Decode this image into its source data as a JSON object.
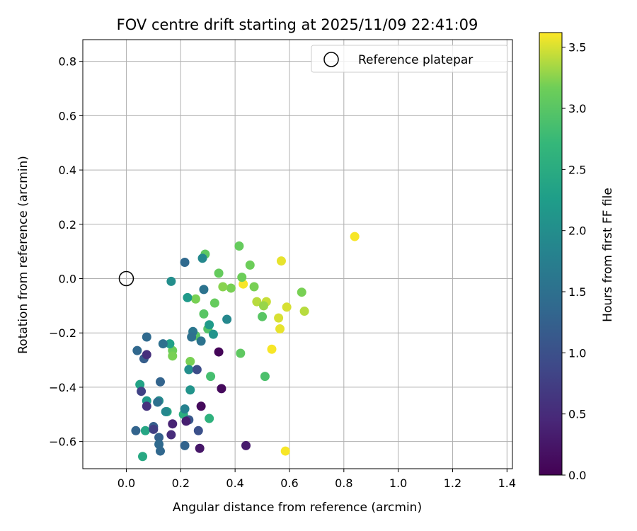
{
  "chart_data": {
    "type": "scatter",
    "title": "FOV centre drift starting at 2025/11/09 22:41:09",
    "xlabel": "Angular distance from reference (arcmin)",
    "ylabel": "Rotation from reference (arcmin)",
    "xlim": [
      -0.16,
      1.42
    ],
    "ylim": [
      -0.7,
      0.88
    ],
    "x_ticks": [
      "0.0",
      "0.2",
      "0.4",
      "0.6",
      "0.8",
      "1.0",
      "1.2",
      "1.4"
    ],
    "y_ticks": [
      "0.8",
      "0.6",
      "0.4",
      "0.2",
      "0.0",
      "−0.2",
      "−0.4",
      "−0.6"
    ],
    "grid": true,
    "legend": {
      "position": "top-right",
      "entries": [
        "Reference platepar"
      ]
    },
    "colorbar": {
      "label": "Hours from first FF file",
      "colormap": "viridis",
      "range": [
        0,
        3.62
      ],
      "ticks": [
        "0.0",
        "0.5",
        "1.0",
        "1.5",
        "2.0",
        "2.5",
        "3.0",
        "3.5"
      ]
    },
    "reference_point": {
      "x": 0.0,
      "y": 0.0
    },
    "points": [
      {
        "x": 0.84,
        "y": 0.155,
        "c": 3.6
      },
      {
        "x": 0.57,
        "y": 0.065,
        "c": 3.55
      },
      {
        "x": 0.59,
        "y": -0.105,
        "c": 3.5
      },
      {
        "x": 0.655,
        "y": -0.12,
        "c": 3.4
      },
      {
        "x": 0.645,
        "y": -0.05,
        "c": 3.2
      },
      {
        "x": 0.43,
        "y": -0.02,
        "c": 3.6
      },
      {
        "x": 0.56,
        "y": -0.145,
        "c": 3.5
      },
      {
        "x": 0.565,
        "y": -0.185,
        "c": 3.55
      },
      {
        "x": 0.535,
        "y": -0.26,
        "c": 3.6
      },
      {
        "x": 0.585,
        "y": -0.635,
        "c": 3.6
      },
      {
        "x": 0.48,
        "y": -0.085,
        "c": 3.4
      },
      {
        "x": 0.515,
        "y": -0.085,
        "c": 3.45
      },
      {
        "x": 0.505,
        "y": -0.1,
        "c": 3.3
      },
      {
        "x": 0.5,
        "y": -0.14,
        "c": 3.0
      },
      {
        "x": 0.47,
        "y": -0.03,
        "c": 3.2
      },
      {
        "x": 0.455,
        "y": 0.05,
        "c": 3.15
      },
      {
        "x": 0.415,
        "y": 0.12,
        "c": 3.1
      },
      {
        "x": 0.425,
        "y": 0.005,
        "c": 3.15
      },
      {
        "x": 0.385,
        "y": -0.035,
        "c": 3.2
      },
      {
        "x": 0.355,
        "y": -0.03,
        "c": 3.25
      },
      {
        "x": 0.34,
        "y": 0.02,
        "c": 3.1
      },
      {
        "x": 0.325,
        "y": -0.09,
        "c": 3.1
      },
      {
        "x": 0.29,
        "y": 0.09,
        "c": 3.05
      },
      {
        "x": 0.285,
        "y": -0.13,
        "c": 3.0
      },
      {
        "x": 0.255,
        "y": -0.075,
        "c": 3.2
      },
      {
        "x": 0.3,
        "y": -0.185,
        "c": 2.95
      },
      {
        "x": 0.255,
        "y": -0.21,
        "c": 3.0
      },
      {
        "x": 0.235,
        "y": -0.305,
        "c": 3.2
      },
      {
        "x": 0.17,
        "y": -0.265,
        "c": 3.15
      },
      {
        "x": 0.17,
        "y": -0.285,
        "c": 3.2
      },
      {
        "x": 0.42,
        "y": -0.275,
        "c": 3.05
      },
      {
        "x": 0.51,
        "y": -0.36,
        "c": 2.9
      },
      {
        "x": 0.31,
        "y": -0.36,
        "c": 2.85
      },
      {
        "x": 0.305,
        "y": -0.515,
        "c": 2.6
      },
      {
        "x": 0.21,
        "y": -0.5,
        "c": 2.55
      },
      {
        "x": 0.15,
        "y": -0.49,
        "c": 2.5
      },
      {
        "x": 0.07,
        "y": -0.56,
        "c": 2.4
      },
      {
        "x": 0.06,
        "y": -0.655,
        "c": 2.45
      },
      {
        "x": 0.05,
        "y": -0.39,
        "c": 2.35
      },
      {
        "x": 0.075,
        "y": -0.45,
        "c": 2.2
      },
      {
        "x": 0.16,
        "y": -0.24,
        "c": 2.3
      },
      {
        "x": 0.225,
        "y": -0.07,
        "c": 2.2
      },
      {
        "x": 0.165,
        "y": -0.01,
        "c": 2.0
      },
      {
        "x": 0.28,
        "y": 0.075,
        "c": 1.9
      },
      {
        "x": 0.305,
        "y": -0.17,
        "c": 2.2
      },
      {
        "x": 0.32,
        "y": -0.205,
        "c": 2.1
      },
      {
        "x": 0.37,
        "y": -0.15,
        "c": 1.9
      },
      {
        "x": 0.23,
        "y": -0.335,
        "c": 2.0
      },
      {
        "x": 0.235,
        "y": -0.41,
        "c": 2.1
      },
      {
        "x": 0.12,
        "y": -0.45,
        "c": 1.95
      },
      {
        "x": 0.145,
        "y": -0.49,
        "c": 1.9
      },
      {
        "x": 0.215,
        "y": -0.48,
        "c": 1.8
      },
      {
        "x": 0.285,
        "y": -0.04,
        "c": 1.55
      },
      {
        "x": 0.215,
        "y": 0.06,
        "c": 1.4
      },
      {
        "x": 0.245,
        "y": -0.195,
        "c": 1.6
      },
      {
        "x": 0.24,
        "y": -0.215,
        "c": 1.5
      },
      {
        "x": 0.275,
        "y": -0.23,
        "c": 1.55
      },
      {
        "x": 0.135,
        "y": -0.24,
        "c": 1.5
      },
      {
        "x": 0.075,
        "y": -0.215,
        "c": 1.4
      },
      {
        "x": 0.04,
        "y": -0.265,
        "c": 1.35
      },
      {
        "x": 0.065,
        "y": -0.295,
        "c": 1.2
      },
      {
        "x": 0.125,
        "y": -0.38,
        "c": 1.3
      },
      {
        "x": 0.115,
        "y": -0.455,
        "c": 1.5
      },
      {
        "x": 0.1,
        "y": -0.545,
        "c": 1.2
      },
      {
        "x": 0.035,
        "y": -0.56,
        "c": 1.3
      },
      {
        "x": 0.12,
        "y": -0.585,
        "c": 1.25
      },
      {
        "x": 0.12,
        "y": -0.61,
        "c": 1.4
      },
      {
        "x": 0.125,
        "y": -0.635,
        "c": 1.35
      },
      {
        "x": 0.215,
        "y": -0.615,
        "c": 1.3
      },
      {
        "x": 0.265,
        "y": -0.56,
        "c": 1.0
      },
      {
        "x": 0.23,
        "y": -0.52,
        "c": 1.1
      },
      {
        "x": 0.26,
        "y": -0.335,
        "c": 0.95
      },
      {
        "x": 0.055,
        "y": -0.415,
        "c": 0.8
      },
      {
        "x": 0.075,
        "y": -0.47,
        "c": 0.6
      },
      {
        "x": 0.075,
        "y": -0.28,
        "c": 0.55
      },
      {
        "x": 0.1,
        "y": -0.555,
        "c": 0.75
      },
      {
        "x": 0.165,
        "y": -0.575,
        "c": 0.5
      },
      {
        "x": 0.17,
        "y": -0.535,
        "c": 0.4
      },
      {
        "x": 0.22,
        "y": -0.525,
        "c": 0.35
      },
      {
        "x": 0.27,
        "y": -0.625,
        "c": 0.25
      },
      {
        "x": 0.275,
        "y": -0.47,
        "c": 0.1
      },
      {
        "x": 0.34,
        "y": -0.27,
        "c": 0.05
      },
      {
        "x": 0.35,
        "y": -0.405,
        "c": 0.1
      },
      {
        "x": 0.44,
        "y": -0.615,
        "c": 0.3
      }
    ]
  }
}
